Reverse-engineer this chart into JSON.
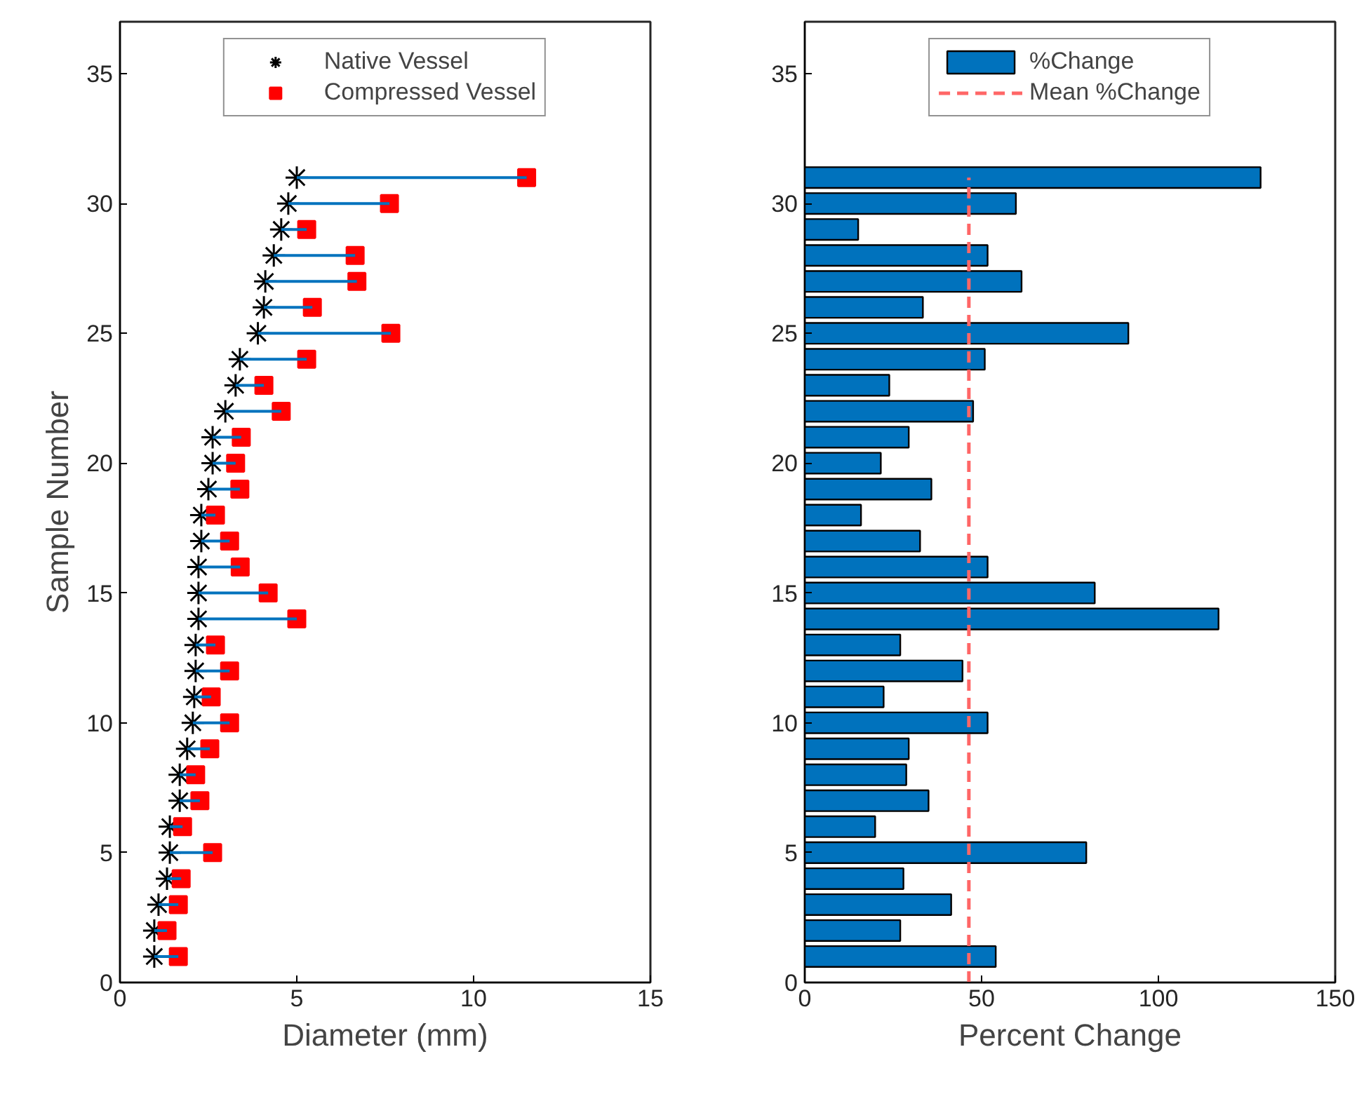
{
  "chart_data": [
    {
      "type": "scatter",
      "orientation": "horizontal",
      "xlabel": "Diameter (mm)",
      "ylabel": "Sample Number",
      "x": [
        1,
        2,
        3,
        4,
        5,
        6,
        7,
        8,
        9,
        10,
        11,
        12,
        13,
        14,
        15,
        16,
        17,
        18,
        19,
        20,
        21,
        22,
        23,
        24,
        25,
        26,
        27,
        28,
        29,
        30,
        31
      ],
      "series": [
        {
          "name": "Native Vessel",
          "color": "#000000",
          "marker": "cross",
          "values": [
            0.97,
            0.97,
            1.09,
            1.33,
            1.41,
            1.41,
            1.69,
            1.69,
            1.9,
            2.06,
            2.1,
            2.14,
            2.14,
            2.22,
            2.22,
            2.22,
            2.3,
            2.3,
            2.5,
            2.62,
            2.62,
            2.98,
            3.27,
            3.39,
            3.9,
            4.07,
            4.11,
            4.35,
            4.56,
            4.76,
            5.0
          ],
          "errors": [
            [
              0.97,
              1.65
            ],
            [
              0.97,
              1.33
            ],
            [
              1.09,
              1.65
            ],
            [
              1.33,
              1.73
            ],
            [
              1.41,
              2.62
            ],
            [
              1.41,
              1.77
            ],
            [
              1.69,
              2.26
            ],
            [
              1.69,
              2.14
            ],
            [
              1.9,
              2.54
            ],
            [
              2.06,
              3.1
            ],
            [
              2.1,
              2.58
            ],
            [
              2.14,
              3.1
            ],
            [
              2.14,
              2.7
            ],
            [
              2.22,
              5.0
            ],
            [
              2.22,
              4.19
            ],
            [
              2.22,
              3.4
            ],
            [
              2.3,
              3.1
            ],
            [
              2.3,
              2.7
            ],
            [
              2.5,
              3.39
            ],
            [
              2.62,
              3.27
            ],
            [
              2.62,
              3.43
            ],
            [
              2.98,
              4.56
            ],
            [
              3.27,
              4.07
            ],
            [
              3.39,
              5.28
            ],
            [
              3.9,
              7.66
            ],
            [
              4.07,
              5.44
            ],
            [
              4.11,
              6.7
            ],
            [
              4.35,
              6.65
            ],
            [
              4.56,
              5.28
            ],
            [
              4.76,
              7.62
            ],
            [
              5.0,
              11.5
            ]
          ]
        },
        {
          "name": "Compressed Vessel",
          "color": "#ff0000",
          "marker": "square",
          "values": [
            1.65,
            1.33,
            1.65,
            1.73,
            2.62,
            1.77,
            2.26,
            2.14,
            2.54,
            3.1,
            2.58,
            3.1,
            2.7,
            5.0,
            4.19,
            3.4,
            3.1,
            2.7,
            3.39,
            3.27,
            3.43,
            4.56,
            4.07,
            5.28,
            7.66,
            5.44,
            6.7,
            6.65,
            5.28,
            7.62,
            11.5
          ]
        }
      ],
      "xlim": [
        0,
        15
      ],
      "xticks": [
        0,
        5,
        10,
        15
      ],
      "ylim": [
        0,
        37
      ],
      "yticks": [
        0,
        5,
        10,
        15,
        20,
        25,
        30,
        35
      ],
      "grid": false,
      "legend": "top"
    },
    {
      "type": "bar",
      "orientation": "horizontal",
      "xlabel": "Percent Change",
      "x": [
        1,
        2,
        3,
        4,
        5,
        6,
        7,
        8,
        9,
        10,
        11,
        12,
        13,
        14,
        15,
        16,
        17,
        18,
        19,
        20,
        21,
        22,
        23,
        24,
        25,
        26,
        27,
        28,
        29,
        30,
        31
      ],
      "series": [
        {
          "name": "%Change",
          "color": "#0072bd",
          "values": [
            54,
            27,
            41.4,
            27.9,
            79.6,
            19.9,
            35,
            28.7,
            29.4,
            51.7,
            22.3,
            44.6,
            27,
            117,
            82,
            51.7,
            32.6,
            15.9,
            35.8,
            21.5,
            29.4,
            47.6,
            23.9,
            50.9,
            91.5,
            33.4,
            61.3,
            51.7,
            15.1,
            59.7,
            128.9
          ]
        }
      ],
      "ref_lines": [
        {
          "axis": "x",
          "value": 46.4,
          "label": "Mean %Change",
          "color": "#ff6666",
          "line_style": "dashed"
        }
      ],
      "xlim": [
        0,
        150
      ],
      "xticks": [
        0,
        50,
        100,
        150
      ],
      "ylim": [
        0,
        37
      ],
      "yticks": [
        0,
        5,
        10,
        15,
        20,
        25,
        30,
        35
      ],
      "grid": false,
      "legend": "top"
    }
  ]
}
